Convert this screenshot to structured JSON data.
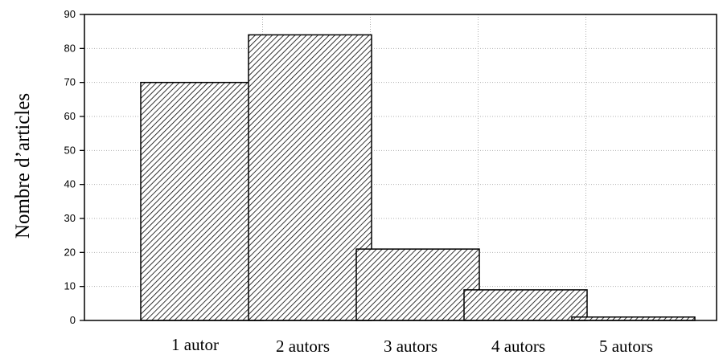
{
  "chart_data": {
    "type": "bar",
    "title": "",
    "xlabel": "",
    "ylabel": "Nombre d’articles",
    "categories": [
      "1 autor",
      "2 autors",
      "3 autors",
      "4 autors",
      "5 autors"
    ],
    "values": [
      70,
      84,
      21,
      9,
      1
    ],
    "ylim": [
      0,
      90
    ],
    "yticks": [
      0,
      10,
      20,
      30,
      40,
      50,
      60,
      70,
      80,
      90
    ],
    "grid": true,
    "bar_pattern": "diagonal-hatch",
    "colors": {
      "bar_stroke": "#000000",
      "hatch": "#000000",
      "grid": "#b0b0b0",
      "background": "#ffffff"
    }
  }
}
